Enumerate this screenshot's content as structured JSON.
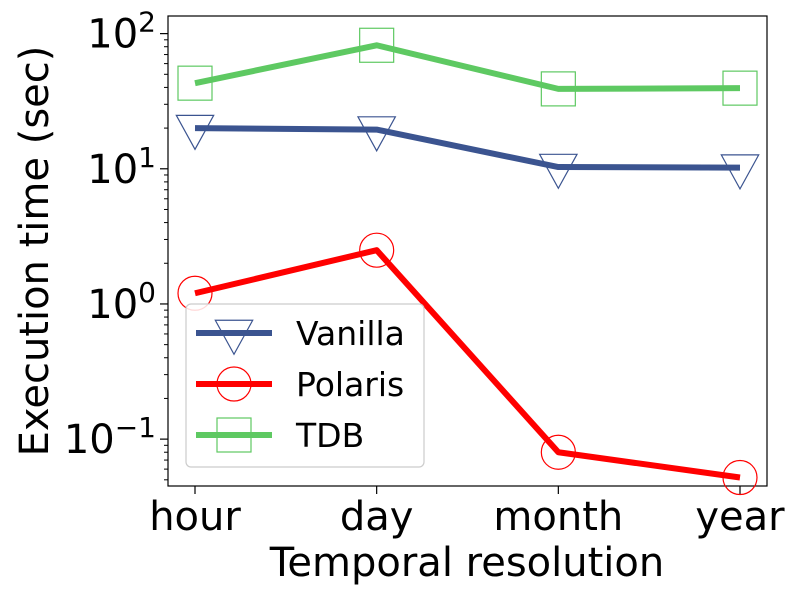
{
  "chart_data": {
    "type": "line",
    "title": "",
    "xlabel": "Temporal resolution",
    "ylabel": "Execution time (sec)",
    "yscale": "log",
    "ylim": [
      0.045,
      135
    ],
    "categories": [
      "hour",
      "day",
      "month",
      "year"
    ],
    "yticks": [
      {
        "value": 0.1,
        "base": "10",
        "exp": "−1"
      },
      {
        "value": 1,
        "base": "10",
        "exp": "0"
      },
      {
        "value": 10,
        "base": "10",
        "exp": "1"
      },
      {
        "value": 100,
        "base": "10",
        "exp": "2"
      }
    ],
    "grid": false,
    "legend_position": "lower-left",
    "series": [
      {
        "name": "Vanilla",
        "color": "#3b5490",
        "marker": "triangle-down",
        "values": [
          20,
          19.5,
          10.3,
          10.2
        ]
      },
      {
        "name": "Polaris",
        "color": "#ff0000",
        "marker": "circle",
        "values": [
          1.2,
          2.5,
          0.08,
          0.052
        ]
      },
      {
        "name": "TDB",
        "color": "#5ec962",
        "marker": "square",
        "values": [
          43,
          82,
          39,
          39.5
        ]
      }
    ]
  }
}
